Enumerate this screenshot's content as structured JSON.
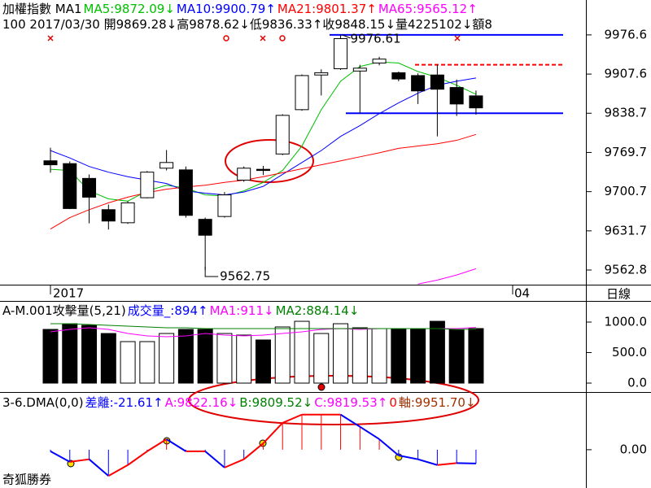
{
  "chart_data": [
    {
      "type": "candlestick",
      "title": "加權指數 MA1",
      "info": "100 2017/03/30 開9869.28↓高9878.62↓低9836.33↑收9848.15↓量4225102↓額8",
      "open": [
        9755,
        9750,
        9724,
        9669,
        9646,
        9690,
        9742,
        9739,
        9652,
        9657,
        9721,
        9740,
        9767,
        9845,
        9906,
        9917,
        9913,
        9927,
        9910,
        9905,
        9906,
        9884,
        9869.28
      ],
      "high": [
        9778,
        9754,
        9731,
        9678,
        9684,
        9737,
        9774,
        9745,
        9655,
        9700,
        9745,
        9746,
        9837,
        9907,
        9916,
        9976.61,
        9924,
        9938,
        9912,
        9909,
        9924,
        9898,
        9878.62
      ],
      "low": [
        9734,
        9670,
        9645,
        9634,
        9644,
        9689,
        9738,
        9655,
        9562.75,
        9655,
        9718,
        9730,
        9765,
        9843,
        9870,
        9915,
        9838,
        9923,
        9895,
        9855,
        9798,
        9834,
        9836.33
      ],
      "close": [
        9748,
        9671,
        9691,
        9649,
        9681,
        9735,
        9752,
        9659,
        9624,
        9695,
        9742,
        9738,
        9835,
        9905,
        9910,
        9970,
        9918,
        9934,
        9899,
        9878,
        9881,
        9855,
        9848.15
      ],
      "series": [
        {
          "name": "MA5:9872.09↓",
          "color": "#00c000",
          "values": [
            9740,
            9738,
            9702,
            9688,
            9684,
            9702,
            9712,
            9707,
            9695,
            9693,
            9702,
            9717,
            9738,
            9781,
            9845,
            9895,
            9921,
            9929,
            9927,
            9912,
            9902,
            9888,
            9872.09
          ]
        },
        {
          "name": "MA10:9900.79↑",
          "color": "#0000ff",
          "values": [
            9773,
            9760,
            9745,
            9735,
            9727,
            9721,
            9715,
            9702,
            9698,
            9695,
            9700,
            9710,
            9731,
            9752,
            9773,
            9798,
            9817,
            9838,
            9857,
            9874,
            9888,
            9895,
            9900.79
          ]
        },
        {
          "name": "MA21:9801.37↑",
          "color": "#ff0000",
          "values": [
            9635,
            9655,
            9669,
            9681,
            9691,
            9699,
            9705,
            9709,
            9712,
            9717,
            9721,
            9727,
            9734,
            9741,
            9748,
            9755,
            9762,
            9769,
            9777,
            9781,
            9785,
            9791,
            9801.37
          ]
        },
        {
          "name": "MA65:9565.12↑",
          "color": "#ff00ff",
          "values": [
            null,
            null,
            null,
            null,
            null,
            null,
            null,
            null,
            null,
            null,
            null,
            null,
            null,
            null,
            null,
            null,
            null,
            null,
            null,
            9538,
            9545,
            9554,
            9565.12
          ]
        }
      ],
      "ylim": [
        9537,
        10038
      ],
      "yticks": [
        9976.6,
        9907.6,
        9838.7,
        9769.7,
        9700.7,
        9631.7,
        9562.8
      ],
      "hlines": [
        {
          "value": 9976.6,
          "color": "#0000ff"
        },
        {
          "value": 9838.7,
          "color": "#0000ff"
        },
        {
          "value": 9924,
          "color": "#ff0000",
          "dashed": true
        }
      ],
      "annotations": [
        "9976.61",
        "9562.75"
      ],
      "x_labels": [
        "2017",
        "04"
      ],
      "period": "日線"
    },
    {
      "type": "bar",
      "title": "A-M.001攻擊量(5,21)",
      "series": [
        {
          "name": "成交量_:894↑",
          "color": "#0000ff",
          "values": [
            880,
            973,
            947,
            813,
            680,
            680,
            813,
            880,
            880,
            813,
            787,
            707,
            920,
            1013,
            813,
            973,
            907,
            893,
            880,
            880,
            1013,
            880,
            894
          ]
        },
        {
          "name": "MA1:911↓",
          "color": "#ff00ff",
          "values": [
            840,
            880,
            907,
            880,
            813,
            773,
            760,
            773,
            813,
            787,
            773,
            787,
            813,
            840,
            880,
            893,
            880,
            893,
            893,
            893,
            893,
            893,
            911
          ]
        },
        {
          "name": "MA2:884.14↓",
          "color": "#008000",
          "values": [
            973,
            973,
            960,
            947,
            933,
            920,
            907,
            907,
            893,
            893,
            893,
            893,
            893,
            893,
            893,
            893,
            893,
            893,
            893,
            893,
            893,
            880,
            884.14
          ]
        }
      ],
      "ylim": [
        -93,
        1320
      ],
      "yticks": [
        {
          "value": 1000,
          "label": "1000.0"
        },
        {
          "value": 500,
          "label": "500.0"
        },
        {
          "value": 0,
          "label": "0.0"
        }
      ]
    },
    {
      "type": "line",
      "title": "3-6.DMA(0,0)",
      "series": [
        {
          "name": "差離:-21.61↑",
          "color": "#0000ff",
          "up_color": "#ff0000",
          "values": [
            -2.5,
            -19,
            -15,
            -41,
            -24,
            -2.5,
            16.5,
            -2.5,
            -2.5,
            -28,
            -15,
            10,
            42,
            55,
            55,
            55,
            36,
            16.5,
            -9,
            -15,
            -24,
            -21,
            -21.61
          ]
        }
      ],
      "legend": [
        {
          "text": "A:9822.16↓",
          "color": "#ff00ff"
        },
        {
          "text": "B:9809.52↓",
          "color": "#008000"
        },
        {
          "text": "C:9819.53↑",
          "color": "#ff00ff"
        },
        {
          "text": "0",
          "color": "#ff0000"
        },
        {
          "text": "軸:9951.70↓",
          "color": "#a03000"
        }
      ],
      "ylim": [
        -60,
        84
      ],
      "yticks": [
        {
          "value": 0,
          "label": "0.00"
        }
      ]
    }
  ],
  "footer": "奇狐勝券"
}
